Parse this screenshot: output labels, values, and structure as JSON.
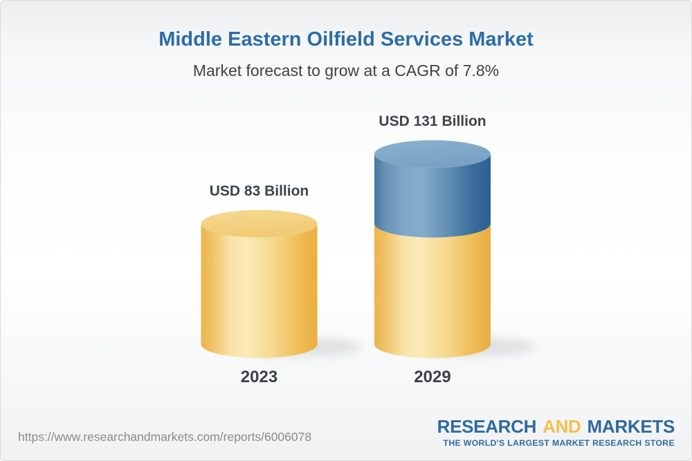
{
  "chart_data": {
    "type": "bar",
    "variant": "3d-cylinder-stacked",
    "title": "Middle Eastern Oilfield Services Market",
    "subtitle": "Market forecast to grow at a CAGR of 7.8%",
    "cagr_pct": 7.8,
    "unit": "USD Billion",
    "categories": [
      "2023",
      "2029"
    ],
    "series": [
      {
        "name": "2023 base market size",
        "color_name": "gold",
        "color": "#F3CF7E",
        "values": [
          83,
          83
        ]
      },
      {
        "name": "Growth to 2029",
        "color_name": "blue",
        "color": "#6C95B9",
        "values": [
          0,
          48
        ]
      }
    ],
    "totals": [
      83,
      131
    ],
    "total_labels": [
      "USD 83 Billion",
      "USD 131 Billion"
    ],
    "ylim": [
      0,
      140
    ],
    "grid": false,
    "legend": false,
    "x_axis_labels_below_bars": true
  },
  "footer": {
    "url": "https://www.researchandmarkets.com/reports/6006078",
    "logo": {
      "research": "RESEARCH",
      "and": "AND",
      "markets": "MARKETS",
      "tagline": "THE WORLD'S LARGEST MARKET RESEARCH STORE"
    }
  },
  "colors": {
    "title_blue": "#2D6DA4",
    "logo_blue": "#2F6A9F",
    "logo_gold": "#F0C14B",
    "bar_gold_edge": "#ECB44B",
    "bar_gold_highlight": "#FBE9B6",
    "bar_blue_edge": "#2B6090",
    "bar_blue_highlight": "#84ABCA",
    "label_dark": "#3F434A",
    "url_gray": "#8B8B8B"
  }
}
